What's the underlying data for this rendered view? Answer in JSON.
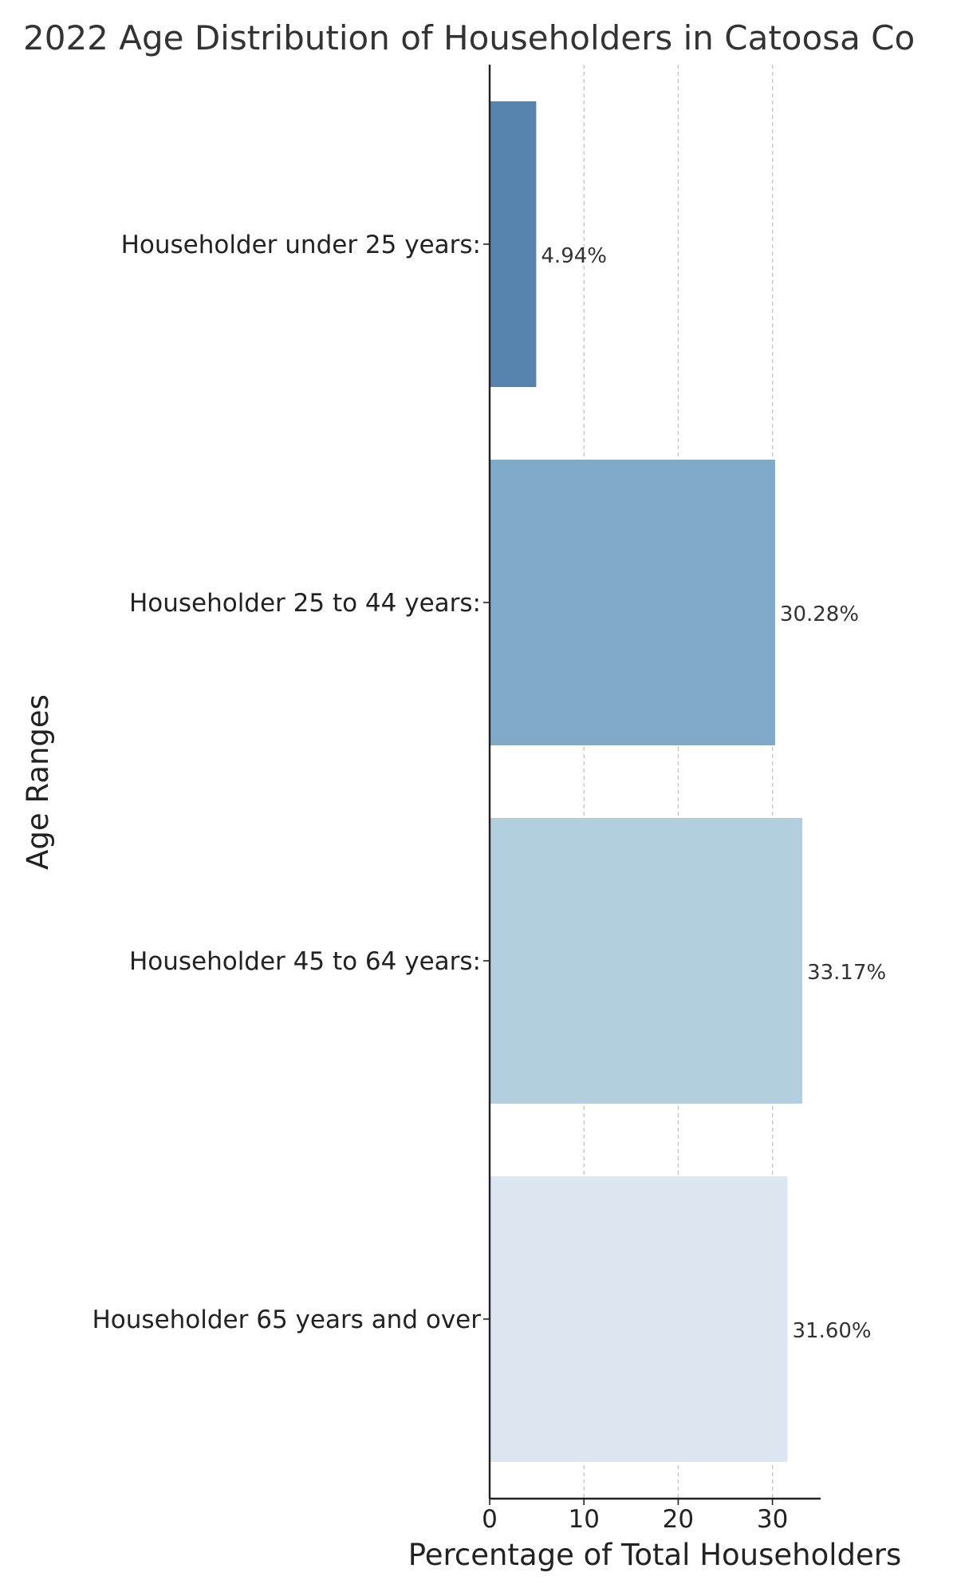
{
  "chart_data": {
    "type": "bar",
    "orientation": "horizontal",
    "title": "2022 Age Distribution of Householders in Catoosa Co",
    "xlabel": "Percentage of Total Householders",
    "ylabel": "Age Ranges",
    "categories": [
      "Householder under 25 years:",
      "Householder 25 to 44 years:",
      "Householder 45 to 64 years:",
      "Householder 65 years and over"
    ],
    "values": [
      4.94,
      30.28,
      33.17,
      31.6
    ],
    "value_labels": [
      "4.94%",
      "30.28%",
      "33.17%",
      "31.60%"
    ],
    "colors": [
      "#5682ae",
      "#7faac9",
      "#b1cfdf",
      "#dde7f1"
    ],
    "xticks": [
      0,
      10,
      20,
      30
    ],
    "tick_labels": [
      "0",
      "10",
      "20",
      "30"
    ],
    "xlim": [
      0,
      35
    ],
    "grid": "vertical dashed"
  }
}
